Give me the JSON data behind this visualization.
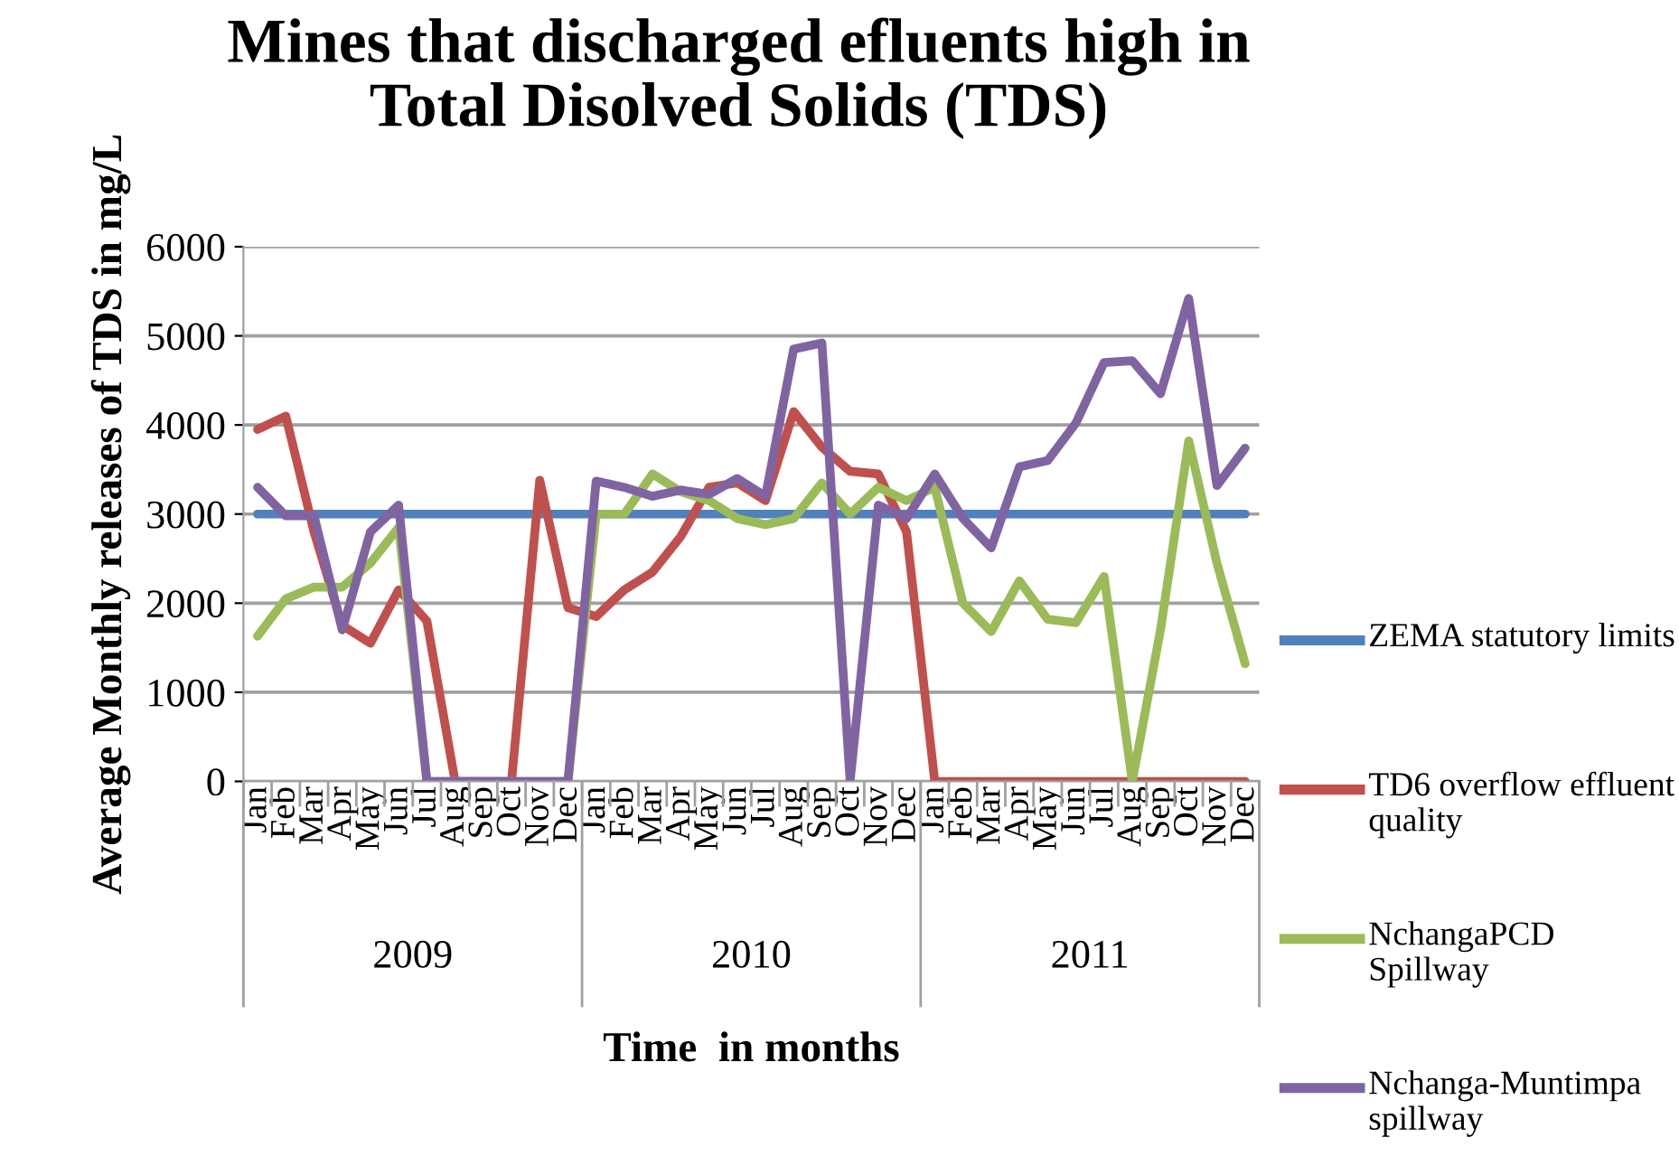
{
  "chart_data": {
    "type": "line",
    "title": "Mines that discharged efluents high in\nTotal Disolved Solids (TDS)",
    "xlabel": "Time  in months",
    "ylabel": "Average Monthly releases of TDS in mg/L",
    "categories": [
      "Jan",
      "Feb",
      "Mar",
      "Apr",
      "May",
      "Jun",
      "Jul",
      "Aug",
      "Sep",
      "Oct",
      "Nov",
      "Dec",
      "Jan",
      "Feb",
      "Mar",
      "Apr",
      "May",
      "Jun",
      "Jul",
      "Aug",
      "Sep",
      "Oct",
      "Nov",
      "Dec",
      "Jan",
      "Feb",
      "Mar",
      "Apr",
      "May",
      "Jun",
      "Jul",
      "Aug",
      "Sep",
      "Oct",
      "Nov",
      "Dec"
    ],
    "annotations": [
      "2009",
      "2010",
      "2011"
    ],
    "ylim": [
      0,
      6000
    ],
    "yticks": [
      0,
      1000,
      2000,
      3000,
      4000,
      5000,
      6000
    ],
    "grid": "y",
    "legend": "right",
    "marker": "none",
    "line_style": "solid",
    "series": [
      {
        "name": "ZEMA statutory limits",
        "color": "#4f81bd",
        "values": [
          3000,
          3000,
          3000,
          3000,
          3000,
          3000,
          3000,
          3000,
          3000,
          3000,
          3000,
          3000,
          3000,
          3000,
          3000,
          3000,
          3000,
          3000,
          3000,
          3000,
          3000,
          3000,
          3000,
          3000,
          3000,
          3000,
          3000,
          3000,
          3000,
          3000,
          3000,
          3000,
          3000,
          3000,
          3000,
          3000
        ]
      },
      {
        "name": "TD6 overflow effluent quality",
        "color": "#c0504d",
        "values": [
          3950,
          4100,
          2800,
          1750,
          1550,
          2150,
          1800,
          0,
          0,
          0,
          3380,
          1950,
          1850,
          2150,
          2350,
          2750,
          3300,
          3350,
          3150,
          4150,
          3750,
          3480,
          3450,
          2800,
          0,
          0,
          0,
          0,
          0,
          0,
          0,
          0,
          0,
          0,
          0,
          0
        ]
      },
      {
        "name": "NchangaPCD Spillway",
        "color": "#9bbb59",
        "values": [
          1630,
          2050,
          2180,
          2180,
          2450,
          2850,
          0,
          0,
          0,
          0,
          0,
          0,
          3000,
          3000,
          3450,
          3250,
          3150,
          2950,
          2880,
          2950,
          3350,
          3000,
          3300,
          3150,
          3300,
          2000,
          1680,
          2250,
          1820,
          1780,
          2300,
          0,
          1700,
          3820,
          2450,
          1320
        ]
      },
      {
        "name": "Nchanga-Muntimpa spillway",
        "color": "#8064a2",
        "values": [
          3300,
          2980,
          2980,
          1700,
          2800,
          3100,
          0,
          0,
          0,
          0,
          0,
          0,
          3370,
          3300,
          3200,
          3270,
          3220,
          3400,
          3200,
          4850,
          4920,
          0,
          3100,
          2950,
          3450,
          2950,
          2620,
          3530,
          3600,
          4020,
          4700,
          4720,
          4350,
          5420,
          3320,
          3740
        ]
      }
    ]
  }
}
